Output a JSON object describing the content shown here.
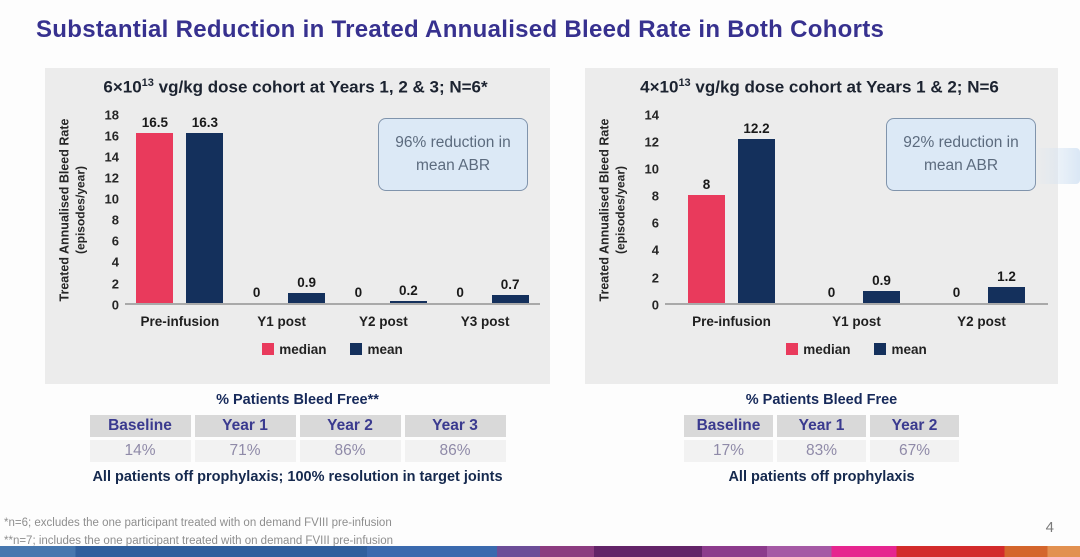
{
  "slide": {
    "title": "Substantial Reduction in Treated Annualised Bleed Rate in Both Cohorts",
    "page_number": "4",
    "footnotes": [
      "*n=6; excludes the one participant treated with on demand FVIII pre-infusion",
      "**n=7; includes the one participant treated with on demand FVIII pre-infusion"
    ]
  },
  "colors": {
    "title_text": "#37318F",
    "median": "#E93A5C",
    "mean": "#14305C",
    "panel_bg": "#ECECEC",
    "callout_bg": "#DCE9F6",
    "callout_border": "#8094AC",
    "callout_text": "#5C6B7E",
    "table_header_bg": "#D9D9D9",
    "table_value_bg": "#F2F2F2",
    "table_header_text": "#3A3A8F",
    "table_value_text": "#8F8AA8",
    "footnote_text": "#8E8E8E"
  },
  "chart_data": [
    {
      "type": "bar",
      "title_prefix": "6×10",
      "title_sup": "13",
      "title_suffix": " vg/kg dose cohort at Years 1, 2 & 3; N=6*",
      "ylabel_line1": "Treated Annualised Bleed Rate",
      "ylabel_line2": "(episodes/year)",
      "ymax": 18,
      "ystep": 2,
      "ylim": [
        0,
        18
      ],
      "grid": false,
      "legend_position": "bottom",
      "categories": [
        "Pre-infusion",
        "Y1 post",
        "Y2 post",
        "Y3 post"
      ],
      "series": [
        {
          "name": "median",
          "values": [
            16.5,
            0,
            0,
            0
          ],
          "labels": [
            "16.5",
            "0",
            "0",
            "0"
          ]
        },
        {
          "name": "mean",
          "values": [
            16.3,
            0.9,
            0.2,
            0.7
          ],
          "labels": [
            "16.3",
            "0.9",
            "0.2",
            "0.7"
          ]
        }
      ],
      "legend": [
        "median",
        "mean"
      ],
      "callout": "96% reduction in mean ABR",
      "table_title": "% Patients Bleed Free**",
      "table_headers": [
        "Baseline",
        "Year 1",
        "Year 2",
        "Year 3"
      ],
      "table_values": [
        "14%",
        "71%",
        "86%",
        "86%"
      ],
      "note": "All patients off prophylaxis; 100% resolution in target joints"
    },
    {
      "type": "bar",
      "title_prefix": "4×10",
      "title_sup": "13",
      "title_suffix": " vg/kg dose cohort at Years 1 & 2; N=6",
      "ylabel_line1": "Treated Annualised Bleed Rate",
      "ylabel_line2": "(episodes/year)",
      "ymax": 14,
      "ystep": 2,
      "ylim": [
        0,
        14
      ],
      "grid": false,
      "legend_position": "bottom",
      "categories": [
        "Pre-infusion",
        "Y1 post",
        "Y2 post"
      ],
      "series": [
        {
          "name": "median",
          "values": [
            8,
            0,
            0
          ],
          "labels": [
            "8",
            "0",
            "0"
          ]
        },
        {
          "name": "mean",
          "values": [
            12.2,
            0.9,
            1.2
          ],
          "labels": [
            "12.2",
            "0.9",
            "1.2"
          ]
        }
      ],
      "legend": [
        "median",
        "mean"
      ],
      "callout": "92% reduction in mean ABR",
      "table_title": "% Patients Bleed Free",
      "table_headers": [
        "Baseline",
        "Year 1",
        "Year 2"
      ],
      "table_values": [
        "17%",
        "83%",
        "67%"
      ],
      "note": "All patients off prophylaxis"
    }
  ]
}
